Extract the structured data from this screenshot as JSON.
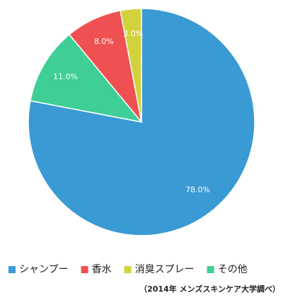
{
  "chart_data": {
    "type": "pie",
    "categories": [
      "シャンプー",
      "香水",
      "消臭スプレー",
      "その他"
    ],
    "values": [
      78.0,
      8.0,
      3.0,
      11.0
    ],
    "value_labels": [
      "78.0%",
      "8.0%",
      "3.0%",
      "11.0%"
    ],
    "colors": [
      "#3a9ad3",
      "#ef5152",
      "#d2d33c",
      "#3fce96"
    ],
    "legend": "bottom",
    "note": "（2014年 メンズスキンケア大学調べ）"
  }
}
